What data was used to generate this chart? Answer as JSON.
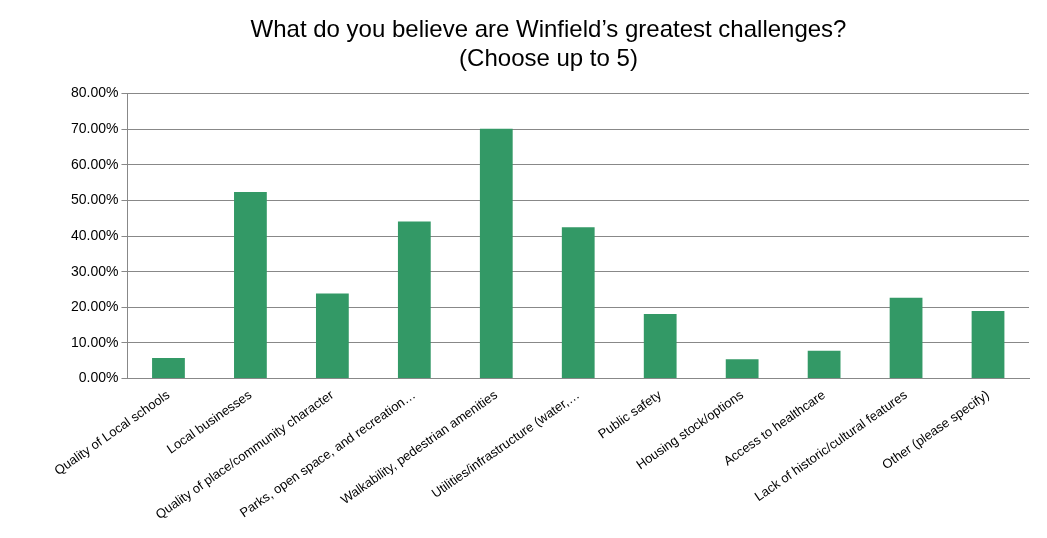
{
  "chart_data": {
    "type": "bar",
    "title": [
      "What do you believe are Winfield’s greatest challenges?",
      "(Choose up to 5)"
    ],
    "categories": [
      "Quality of Local schools",
      "Local businesses",
      "Quality of place/community character",
      "Parks, open space, and recreation…",
      "Walkability, pedestrian amenities",
      "Utilities/infrastructure (water,…",
      "Public safety",
      "Housing stock/options",
      "Access to healthcare",
      "Lack of historic/cultural features",
      "Other (please specify)"
    ],
    "values": [
      5.8,
      52.4,
      23.9,
      44.1,
      70.1,
      42.5,
      18.1,
      5.4,
      7.8,
      22.7,
      19.0
    ],
    "color": "#339966",
    "ylim": [
      0,
      80
    ],
    "yticks": [
      {
        "value": 0,
        "label": "0.00%"
      },
      {
        "value": 10,
        "label": "10.00%"
      },
      {
        "value": 20,
        "label": "20.00%"
      },
      {
        "value": 30,
        "label": "30.00%"
      },
      {
        "value": 40,
        "label": "40.00%"
      },
      {
        "value": 50,
        "label": "50.00%"
      },
      {
        "value": 60,
        "label": "60.00%"
      },
      {
        "value": 70,
        "label": "70.00%"
      },
      {
        "value": 80,
        "label": "80.00%"
      }
    ],
    "grid": "y",
    "legend": false
  }
}
